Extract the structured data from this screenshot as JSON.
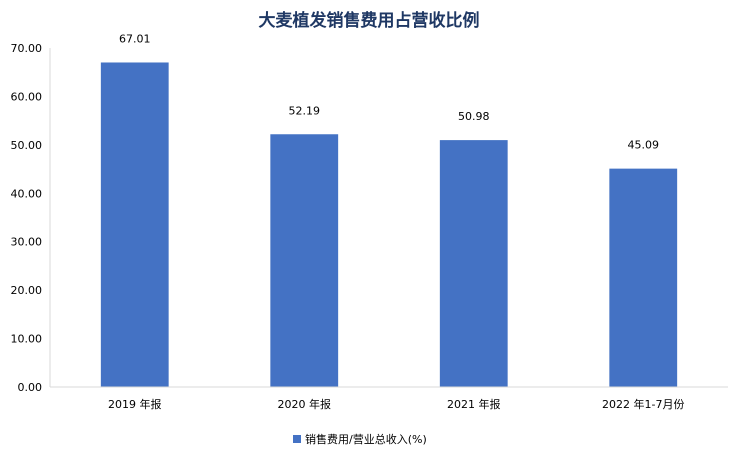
{
  "chart_data": {
    "type": "bar",
    "title": "大麦植发销售费用占营收比例",
    "categories": [
      "2019 年报",
      "2020 年报",
      "2021 年报",
      "2022 年1-7月份"
    ],
    "series": [
      {
        "name": "销售费用/营业总收入(%)",
        "values": [
          67.01,
          52.19,
          50.98,
          45.09
        ]
      }
    ],
    "data_labels": [
      "67.01",
      "52.19",
      "50.98",
      "45.09"
    ],
    "yticks": [
      "0.00",
      "10.00",
      "20.00",
      "30.00",
      "40.00",
      "50.00",
      "60.00",
      "70.00"
    ],
    "ylim": [
      0,
      70
    ],
    "xlabel": "",
    "ylabel": "",
    "grid": false,
    "legend_position": "bottom",
    "colors": {
      "bar": "#4472c4",
      "axis": "#d9d9d9",
      "title": "#1f3864"
    }
  }
}
